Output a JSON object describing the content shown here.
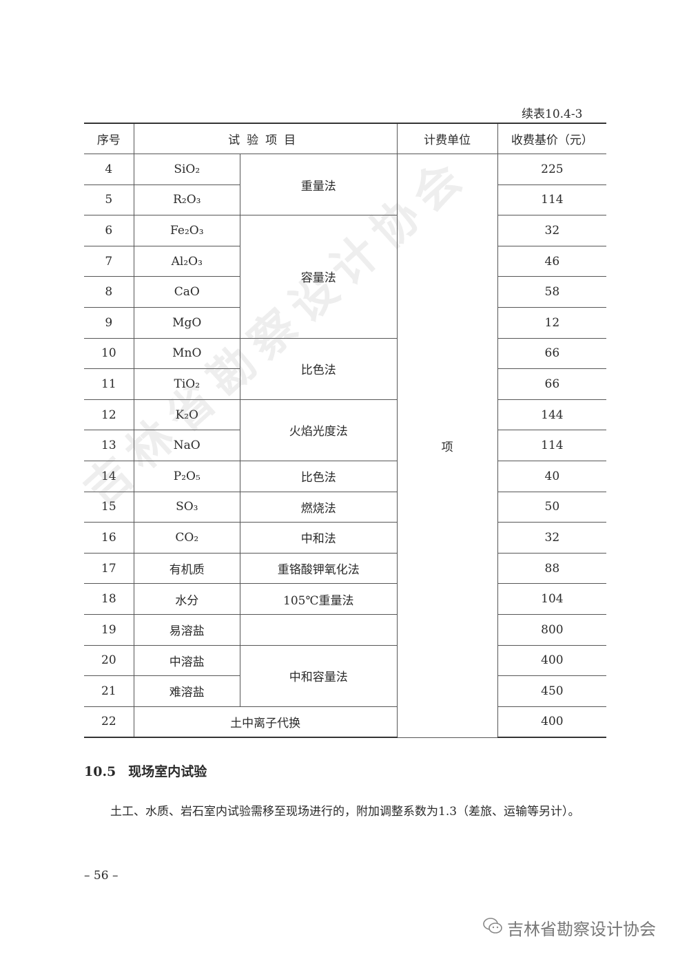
{
  "table": {
    "caption": "续表10.4-3",
    "headers": [
      "序号",
      "试验项目",
      "计费单位",
      "收费基价（元）"
    ],
    "unit": "项",
    "rows": [
      {
        "no": "4",
        "item": "SiO₂",
        "method": "重量法",
        "price": "225"
      },
      {
        "no": "5",
        "item": "R₂O₃",
        "method": "重量法",
        "price": "114"
      },
      {
        "no": "6",
        "item": "Fe₂O₃",
        "method": "容量法",
        "price": "32"
      },
      {
        "no": "7",
        "item": "Al₂O₃",
        "method": "容量法",
        "price": "46"
      },
      {
        "no": "8",
        "item": "CaO",
        "method": "容量法",
        "price": "58"
      },
      {
        "no": "9",
        "item": "MgO",
        "method": "容量法",
        "price": "12"
      },
      {
        "no": "10",
        "item": "MnO",
        "method": "比色法",
        "price": "66"
      },
      {
        "no": "11",
        "item": "TiO₂",
        "method": "比色法",
        "price": "66"
      },
      {
        "no": "12",
        "item": "K₂O",
        "method": "火焰光度法",
        "price": "144"
      },
      {
        "no": "13",
        "item": "NaO",
        "method": "火焰光度法",
        "price": "114"
      },
      {
        "no": "14",
        "item": "P₂O₅",
        "method": "比色法",
        "price": "40"
      },
      {
        "no": "15",
        "item": "SO₃",
        "method": "燃烧法",
        "price": "50"
      },
      {
        "no": "16",
        "item": "CO₂",
        "method": "中和法",
        "price": "32"
      },
      {
        "no": "17",
        "item": "有机质",
        "method": "重铬酸钾氧化法",
        "price": "88"
      },
      {
        "no": "18",
        "item": "水分",
        "method": "105℃重量法",
        "price": "104"
      },
      {
        "no": "19",
        "item": "易溶盐",
        "method": "",
        "price": "800"
      },
      {
        "no": "20",
        "item": "中溶盐",
        "method": "中和容量法",
        "price": "400"
      },
      {
        "no": "21",
        "item": "难溶盐",
        "method": "中和容量法",
        "price": "450"
      },
      {
        "no": "22",
        "item": "土中离子代换",
        "method": "",
        "price": "400"
      }
    ]
  },
  "section": {
    "number": "10.5",
    "title": "现场室内试验"
  },
  "paragraph": "土工、水质、岩石室内试验需移至现场进行的，附加调整系数为1.3（差旅、运输等另计）。",
  "page_number": "– 56 –",
  "watermark": "吉林省勘察设计协会",
  "wechat_source": {
    "icon": "wechat-icon",
    "label": "吉林省勘察设计协会"
  }
}
